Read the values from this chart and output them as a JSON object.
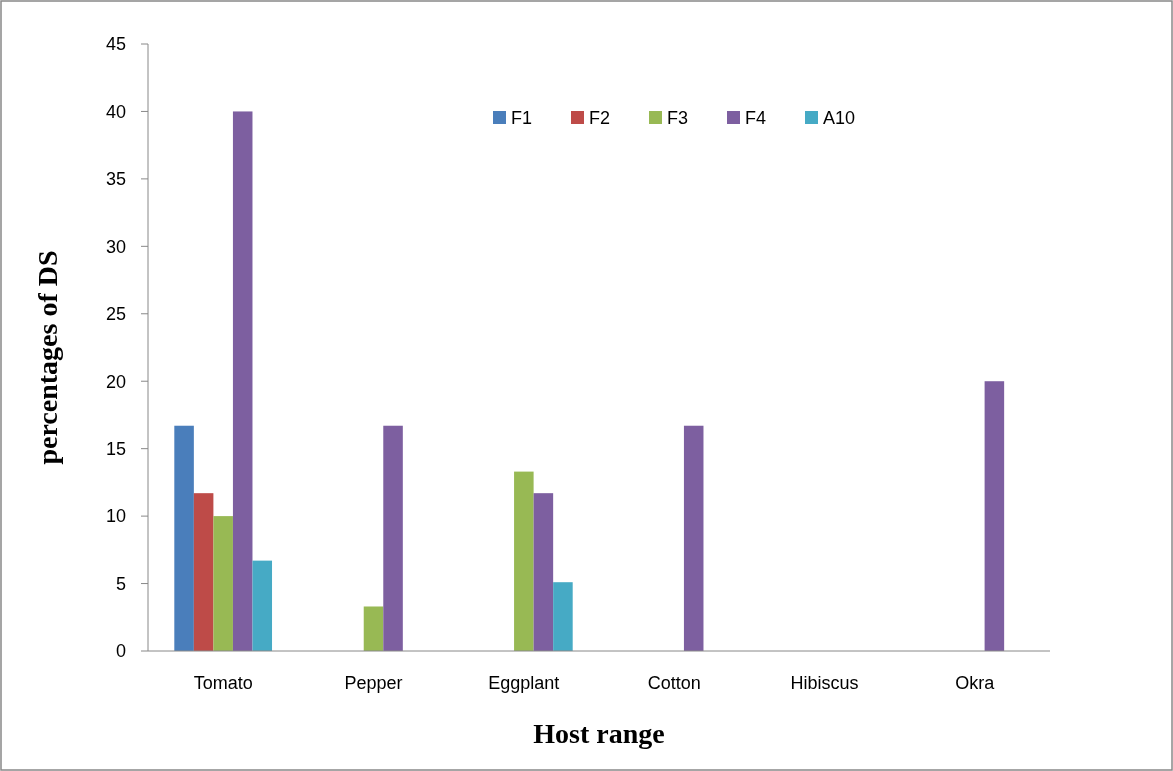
{
  "chart_data": {
    "type": "bar",
    "xlabel": "Host  range",
    "ylabel": "percentages of  DS",
    "categories": [
      "Tomato",
      "Pepper",
      "Eggplant",
      "Cotton",
      "Hibiscus",
      "Okra"
    ],
    "series": [
      {
        "name": "F1",
        "color": "#4a7ebb",
        "values": [
          16.7,
          0,
          0,
          0,
          0,
          0
        ]
      },
      {
        "name": "F2",
        "color": "#be4b48",
        "values": [
          11.7,
          0,
          0,
          0,
          0,
          0
        ]
      },
      {
        "name": "F3",
        "color": "#98b954",
        "values": [
          10,
          3.3,
          13.3,
          0,
          0,
          0
        ]
      },
      {
        "name": "F4",
        "color": "#7d5fa0",
        "values": [
          40,
          16.7,
          11.7,
          16.7,
          0,
          20
        ]
      },
      {
        "name": "A10",
        "color": "#46aac5",
        "values": [
          6.7,
          0,
          5.1,
          0,
          0,
          0
        ]
      }
    ],
    "ylim": [
      0,
      45
    ],
    "yticks": [
      0,
      5,
      10,
      15,
      20,
      25,
      30,
      35,
      40,
      45
    ],
    "grid": false,
    "legend": "top"
  }
}
